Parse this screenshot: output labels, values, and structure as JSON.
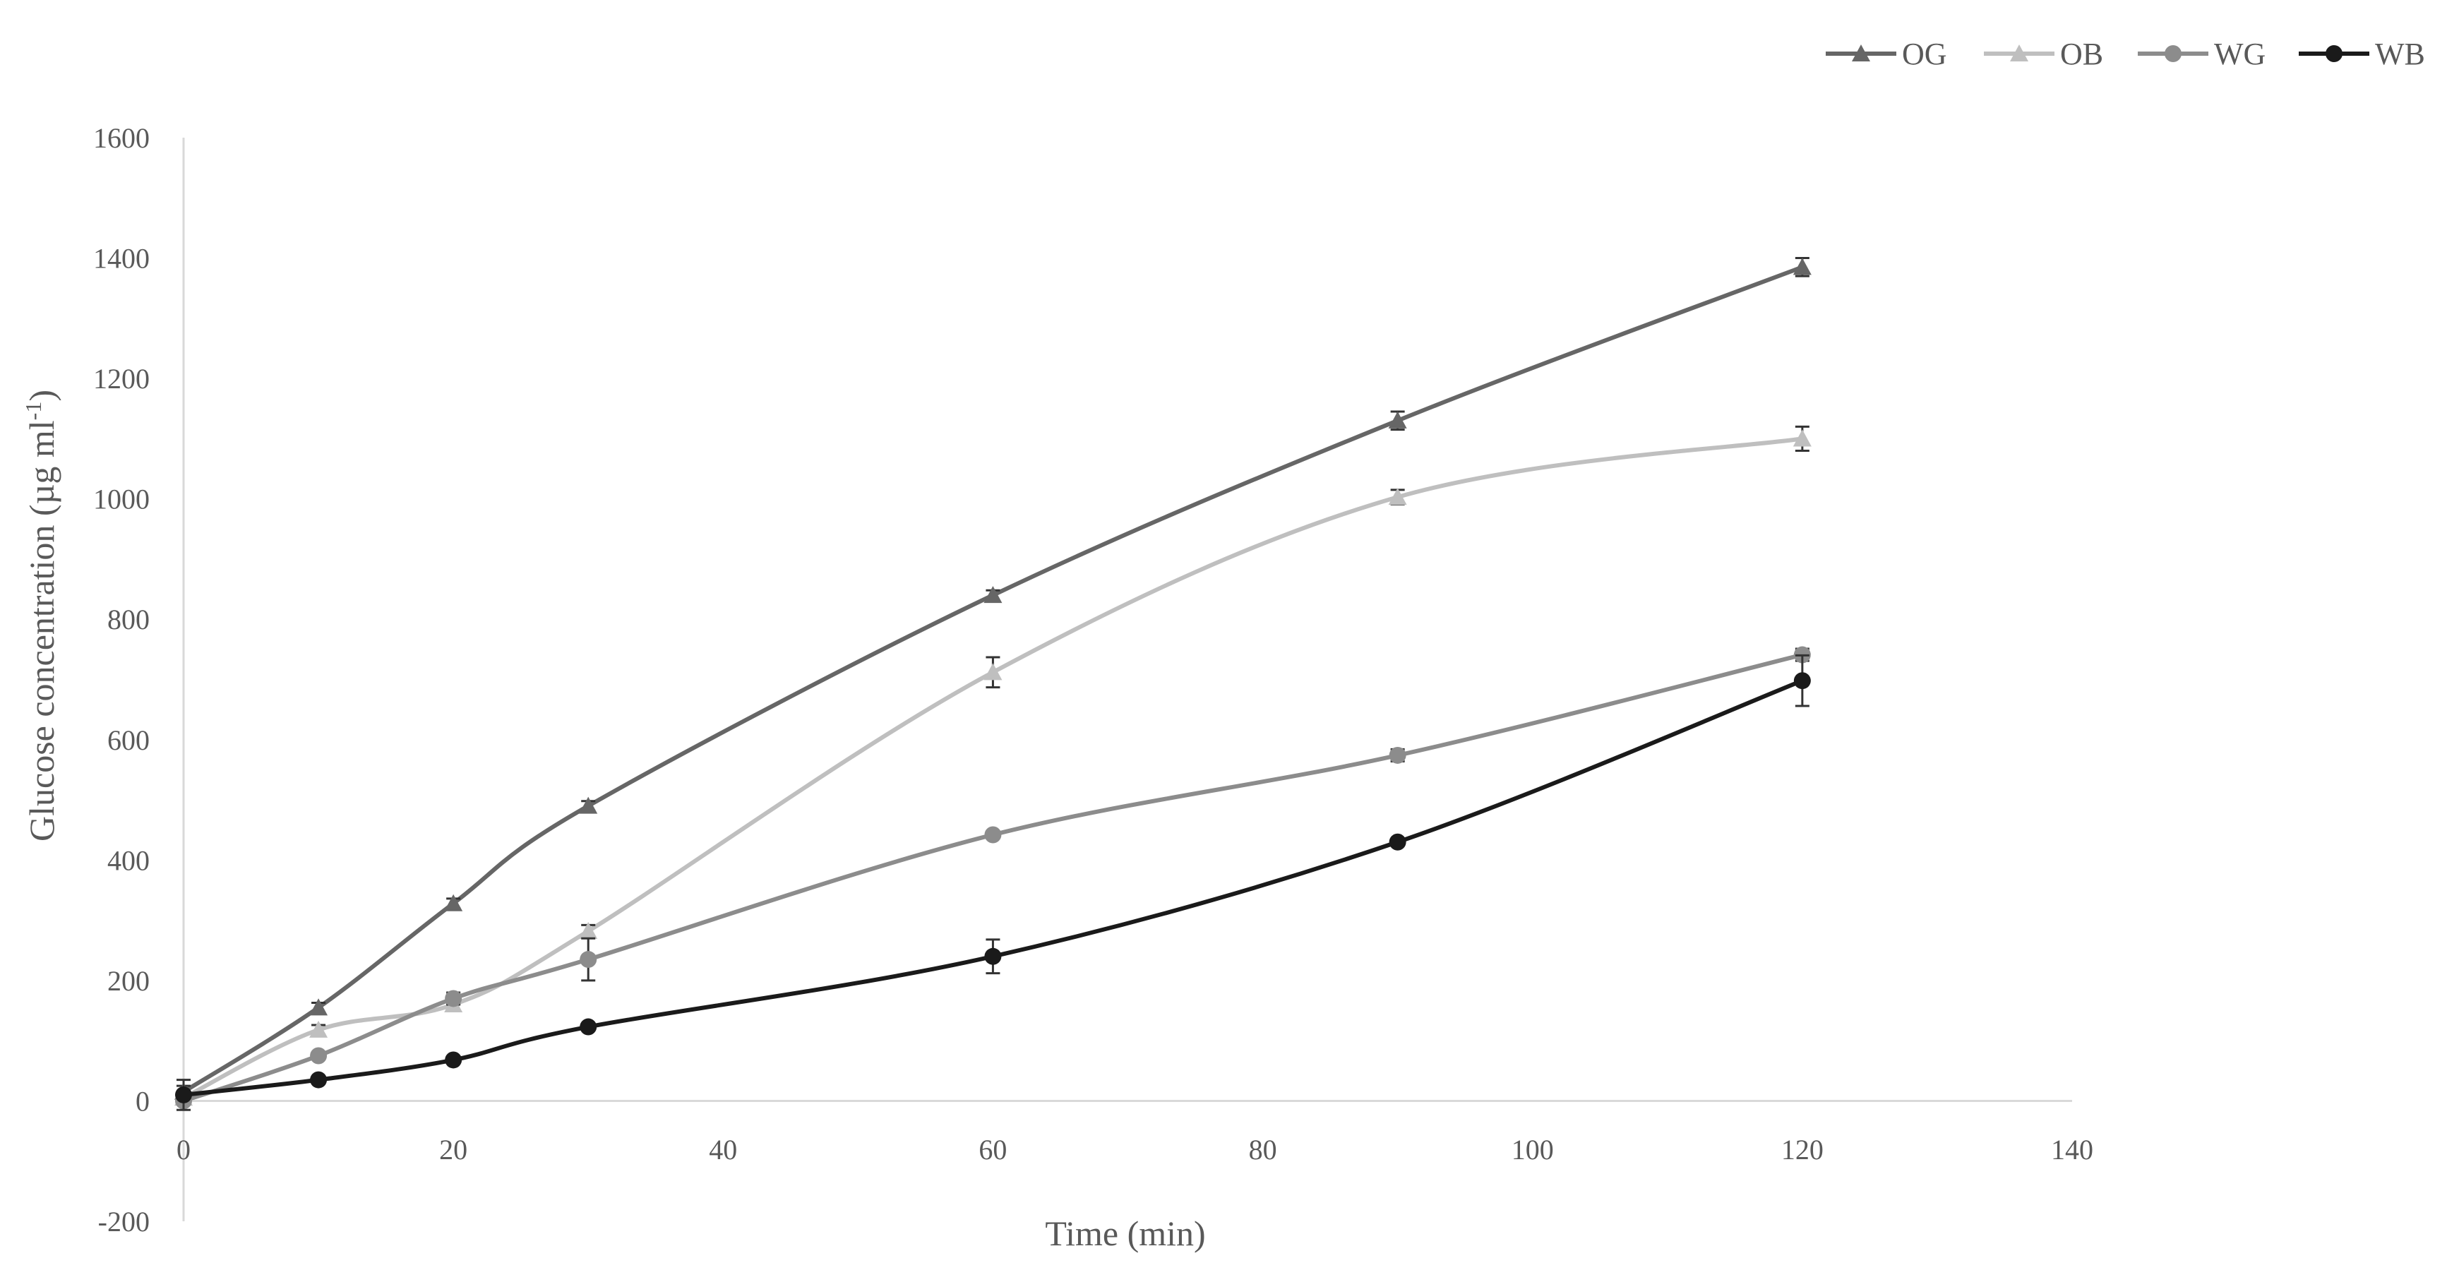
{
  "chart_data": {
    "type": "line",
    "title": "",
    "xlabel": "Time (min)",
    "ylabel_main": "Glucose concentration (µg ml",
    "ylabel_sup": "-1",
    "ylabel_close": ")",
    "xlim": [
      0,
      140
    ],
    "ylim": [
      -200,
      1600
    ],
    "x_ticks": [
      "0",
      "20",
      "40",
      "60",
      "80",
      "100",
      "120",
      "140"
    ],
    "y_ticks": [
      "-200",
      "0",
      "200",
      "400",
      "600",
      "800",
      "1000",
      "1200",
      "1400",
      "1600"
    ],
    "grid": false,
    "legend_position": "top-right",
    "x": [
      0,
      10,
      20,
      30,
      60,
      90,
      120
    ],
    "series": [
      {
        "name": "OG",
        "color": "#666666",
        "marker": "triangle",
        "values": [
          15,
          155,
          328,
          490,
          840,
          1130,
          1385
        ],
        "errors": [
          10,
          8,
          8,
          8,
          8,
          15,
          15
        ]
      },
      {
        "name": "OB",
        "color": "#bfbfbf",
        "marker": "triangle",
        "values": [
          5,
          118,
          160,
          282,
          712,
          1003,
          1100
        ],
        "errors": [
          5,
          8,
          10,
          10,
          25,
          12,
          20
        ]
      },
      {
        "name": "WG",
        "color": "#8c8c8c",
        "marker": "circle",
        "values": [
          0,
          75,
          170,
          235,
          442,
          574,
          741
        ],
        "errors": [
          5,
          5,
          10,
          35,
          5,
          10,
          10
        ]
      },
      {
        "name": "WB",
        "color": "#1a1a1a",
        "marker": "circle",
        "values": [
          10,
          35,
          68,
          123,
          240,
          430,
          698
        ],
        "errors": [
          25,
          5,
          5,
          5,
          28,
          5,
          42
        ]
      }
    ]
  }
}
